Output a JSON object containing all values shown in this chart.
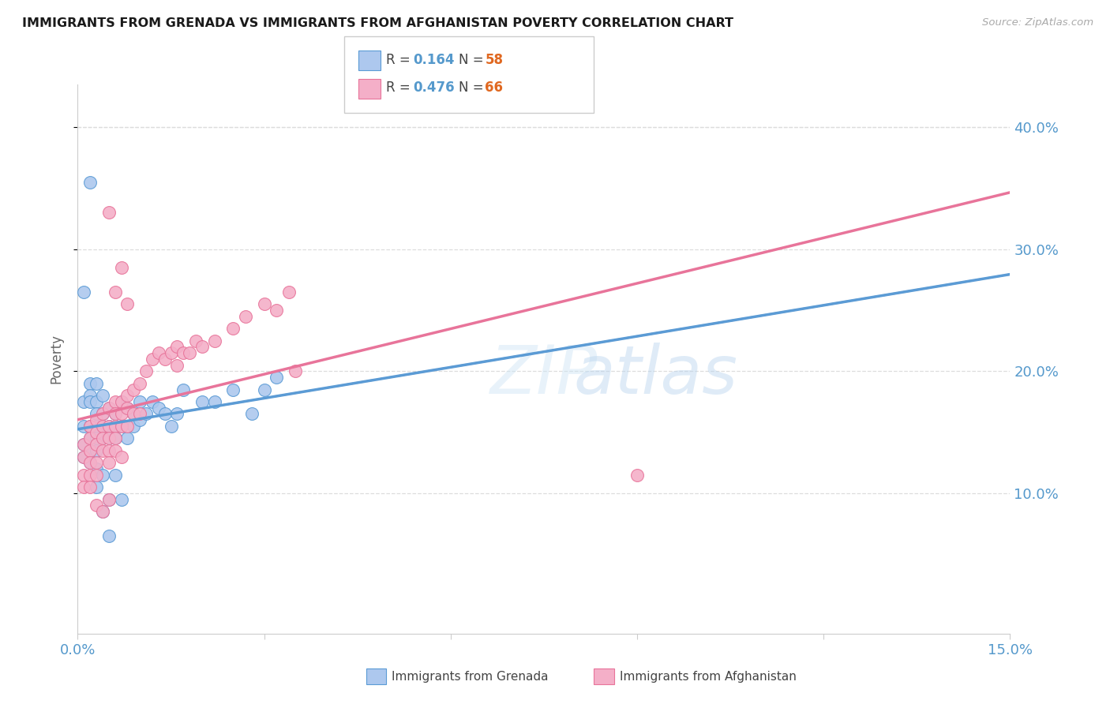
{
  "title": "IMMIGRANTS FROM GRENADA VS IMMIGRANTS FROM AFGHANISTAN POVERTY CORRELATION CHART",
  "source": "Source: ZipAtlas.com",
  "ylabel": "Poverty",
  "yaxis_labels": [
    "10.0%",
    "20.0%",
    "30.0%",
    "40.0%"
  ],
  "yaxis_values": [
    0.1,
    0.2,
    0.3,
    0.4
  ],
  "xlim": [
    0.0,
    0.15
  ],
  "ylim": [
    -0.015,
    0.435
  ],
  "legend_r1": "R = 0.164",
  "legend_n1": "N = 58",
  "legend_r2": "R = 0.476",
  "legend_n2": "N = 66",
  "blue_fill": "#adc8ee",
  "pink_fill": "#f4afc8",
  "blue_edge": "#5b9bd5",
  "pink_edge": "#e8749a",
  "blue_line": "#5b9bd5",
  "pink_line": "#e8749a",
  "dashed_line": "#aaaaaa",
  "axis_label_color": "#5599cc",
  "text_color": "#333333",
  "grid_color": "#dddddd",
  "source_color": "#aaaaaa",
  "grenada_x": [
    0.001,
    0.001,
    0.001,
    0.001,
    0.002,
    0.002,
    0.002,
    0.002,
    0.002,
    0.002,
    0.002,
    0.003,
    0.003,
    0.003,
    0.003,
    0.003,
    0.003,
    0.003,
    0.003,
    0.004,
    0.004,
    0.004,
    0.004,
    0.004,
    0.004,
    0.005,
    0.005,
    0.005,
    0.005,
    0.005,
    0.006,
    0.006,
    0.006,
    0.006,
    0.007,
    0.007,
    0.007,
    0.008,
    0.008,
    0.009,
    0.009,
    0.01,
    0.01,
    0.011,
    0.012,
    0.013,
    0.014,
    0.015,
    0.016,
    0.017,
    0.02,
    0.022,
    0.025,
    0.028,
    0.03,
    0.032,
    0.002,
    0.001
  ],
  "grenada_y": [
    0.175,
    0.155,
    0.14,
    0.13,
    0.19,
    0.18,
    0.175,
    0.155,
    0.145,
    0.135,
    0.125,
    0.19,
    0.175,
    0.165,
    0.155,
    0.145,
    0.135,
    0.12,
    0.105,
    0.18,
    0.165,
    0.155,
    0.145,
    0.115,
    0.085,
    0.17,
    0.155,
    0.145,
    0.095,
    0.065,
    0.165,
    0.155,
    0.145,
    0.115,
    0.175,
    0.155,
    0.095,
    0.17,
    0.145,
    0.165,
    0.155,
    0.175,
    0.16,
    0.165,
    0.175,
    0.17,
    0.165,
    0.155,
    0.165,
    0.185,
    0.175,
    0.175,
    0.185,
    0.165,
    0.185,
    0.195,
    0.355,
    0.265
  ],
  "afghanistan_x": [
    0.001,
    0.001,
    0.001,
    0.001,
    0.002,
    0.002,
    0.002,
    0.002,
    0.002,
    0.002,
    0.003,
    0.003,
    0.003,
    0.003,
    0.003,
    0.003,
    0.004,
    0.004,
    0.004,
    0.004,
    0.004,
    0.005,
    0.005,
    0.005,
    0.005,
    0.005,
    0.005,
    0.006,
    0.006,
    0.006,
    0.006,
    0.006,
    0.007,
    0.007,
    0.007,
    0.007,
    0.008,
    0.008,
    0.008,
    0.009,
    0.009,
    0.01,
    0.01,
    0.011,
    0.012,
    0.013,
    0.014,
    0.015,
    0.016,
    0.016,
    0.017,
    0.018,
    0.019,
    0.02,
    0.022,
    0.025,
    0.027,
    0.03,
    0.032,
    0.034,
    0.005,
    0.006,
    0.007,
    0.008,
    0.09,
    0.035
  ],
  "afghanistan_y": [
    0.14,
    0.13,
    0.115,
    0.105,
    0.155,
    0.145,
    0.135,
    0.125,
    0.115,
    0.105,
    0.16,
    0.15,
    0.14,
    0.125,
    0.115,
    0.09,
    0.165,
    0.155,
    0.145,
    0.135,
    0.085,
    0.17,
    0.155,
    0.145,
    0.135,
    0.125,
    0.095,
    0.175,
    0.165,
    0.155,
    0.145,
    0.135,
    0.175,
    0.165,
    0.155,
    0.13,
    0.18,
    0.17,
    0.155,
    0.185,
    0.165,
    0.19,
    0.165,
    0.2,
    0.21,
    0.215,
    0.21,
    0.215,
    0.22,
    0.205,
    0.215,
    0.215,
    0.225,
    0.22,
    0.225,
    0.235,
    0.245,
    0.255,
    0.25,
    0.265,
    0.33,
    0.265,
    0.285,
    0.255,
    0.115,
    0.2
  ]
}
